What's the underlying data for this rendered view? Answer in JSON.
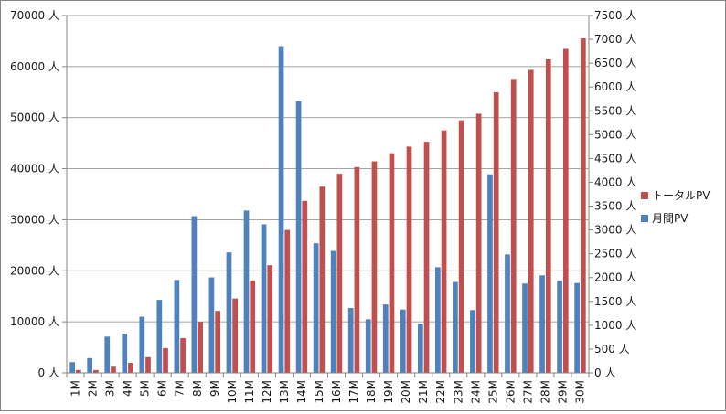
{
  "chart_data": {
    "type": "bar",
    "categories": [
      "1M",
      "2M",
      "3M",
      "4M",
      "5M",
      "6M",
      "7M",
      "8M",
      "9M",
      "10M",
      "11M",
      "12M",
      "13M",
      "14M",
      "15M",
      "16M",
      "17M",
      "18M",
      "19M",
      "20M",
      "21M",
      "22M",
      "23M",
      "24M",
      "25M",
      "26M",
      "27M",
      "28M",
      "29M",
      "30M"
    ],
    "series": [
      {
        "name": "月間PV",
        "axis": "left",
        "color": "#4f81bd",
        "values": [
          2100,
          2900,
          7100,
          7700,
          11000,
          14300,
          18200,
          30700,
          18700,
          23600,
          31800,
          29100,
          64000,
          53200,
          25400,
          23900,
          12700,
          10500,
          13400,
          12400,
          9600,
          20700,
          17800,
          12300,
          38900,
          23200,
          17500,
          19100,
          18100,
          17600
        ]
      },
      {
        "name": "トータルPV",
        "axis": "right",
        "color": "#c0504d",
        "values": [
          60,
          60,
          130,
          210,
          330,
          520,
          730,
          1070,
          1300,
          1560,
          1940,
          2260,
          3000,
          3610,
          3910,
          4180,
          4320,
          4440,
          4610,
          4750,
          4850,
          5090,
          5300,
          5440,
          5890,
          6170,
          6360,
          6580,
          6800,
          7020
        ]
      }
    ],
    "y_left": {
      "min": 0,
      "max": 70000,
      "step": 10000,
      "unit": "人"
    },
    "y_right": {
      "min": 0,
      "max": 7500,
      "step": 500,
      "unit": "人"
    },
    "grid": "horizontal",
    "legend": {
      "placement": "right",
      "order": [
        "トータルPV",
        "月間PV"
      ]
    },
    "title": "",
    "xlabel": "",
    "ylabel": ""
  }
}
